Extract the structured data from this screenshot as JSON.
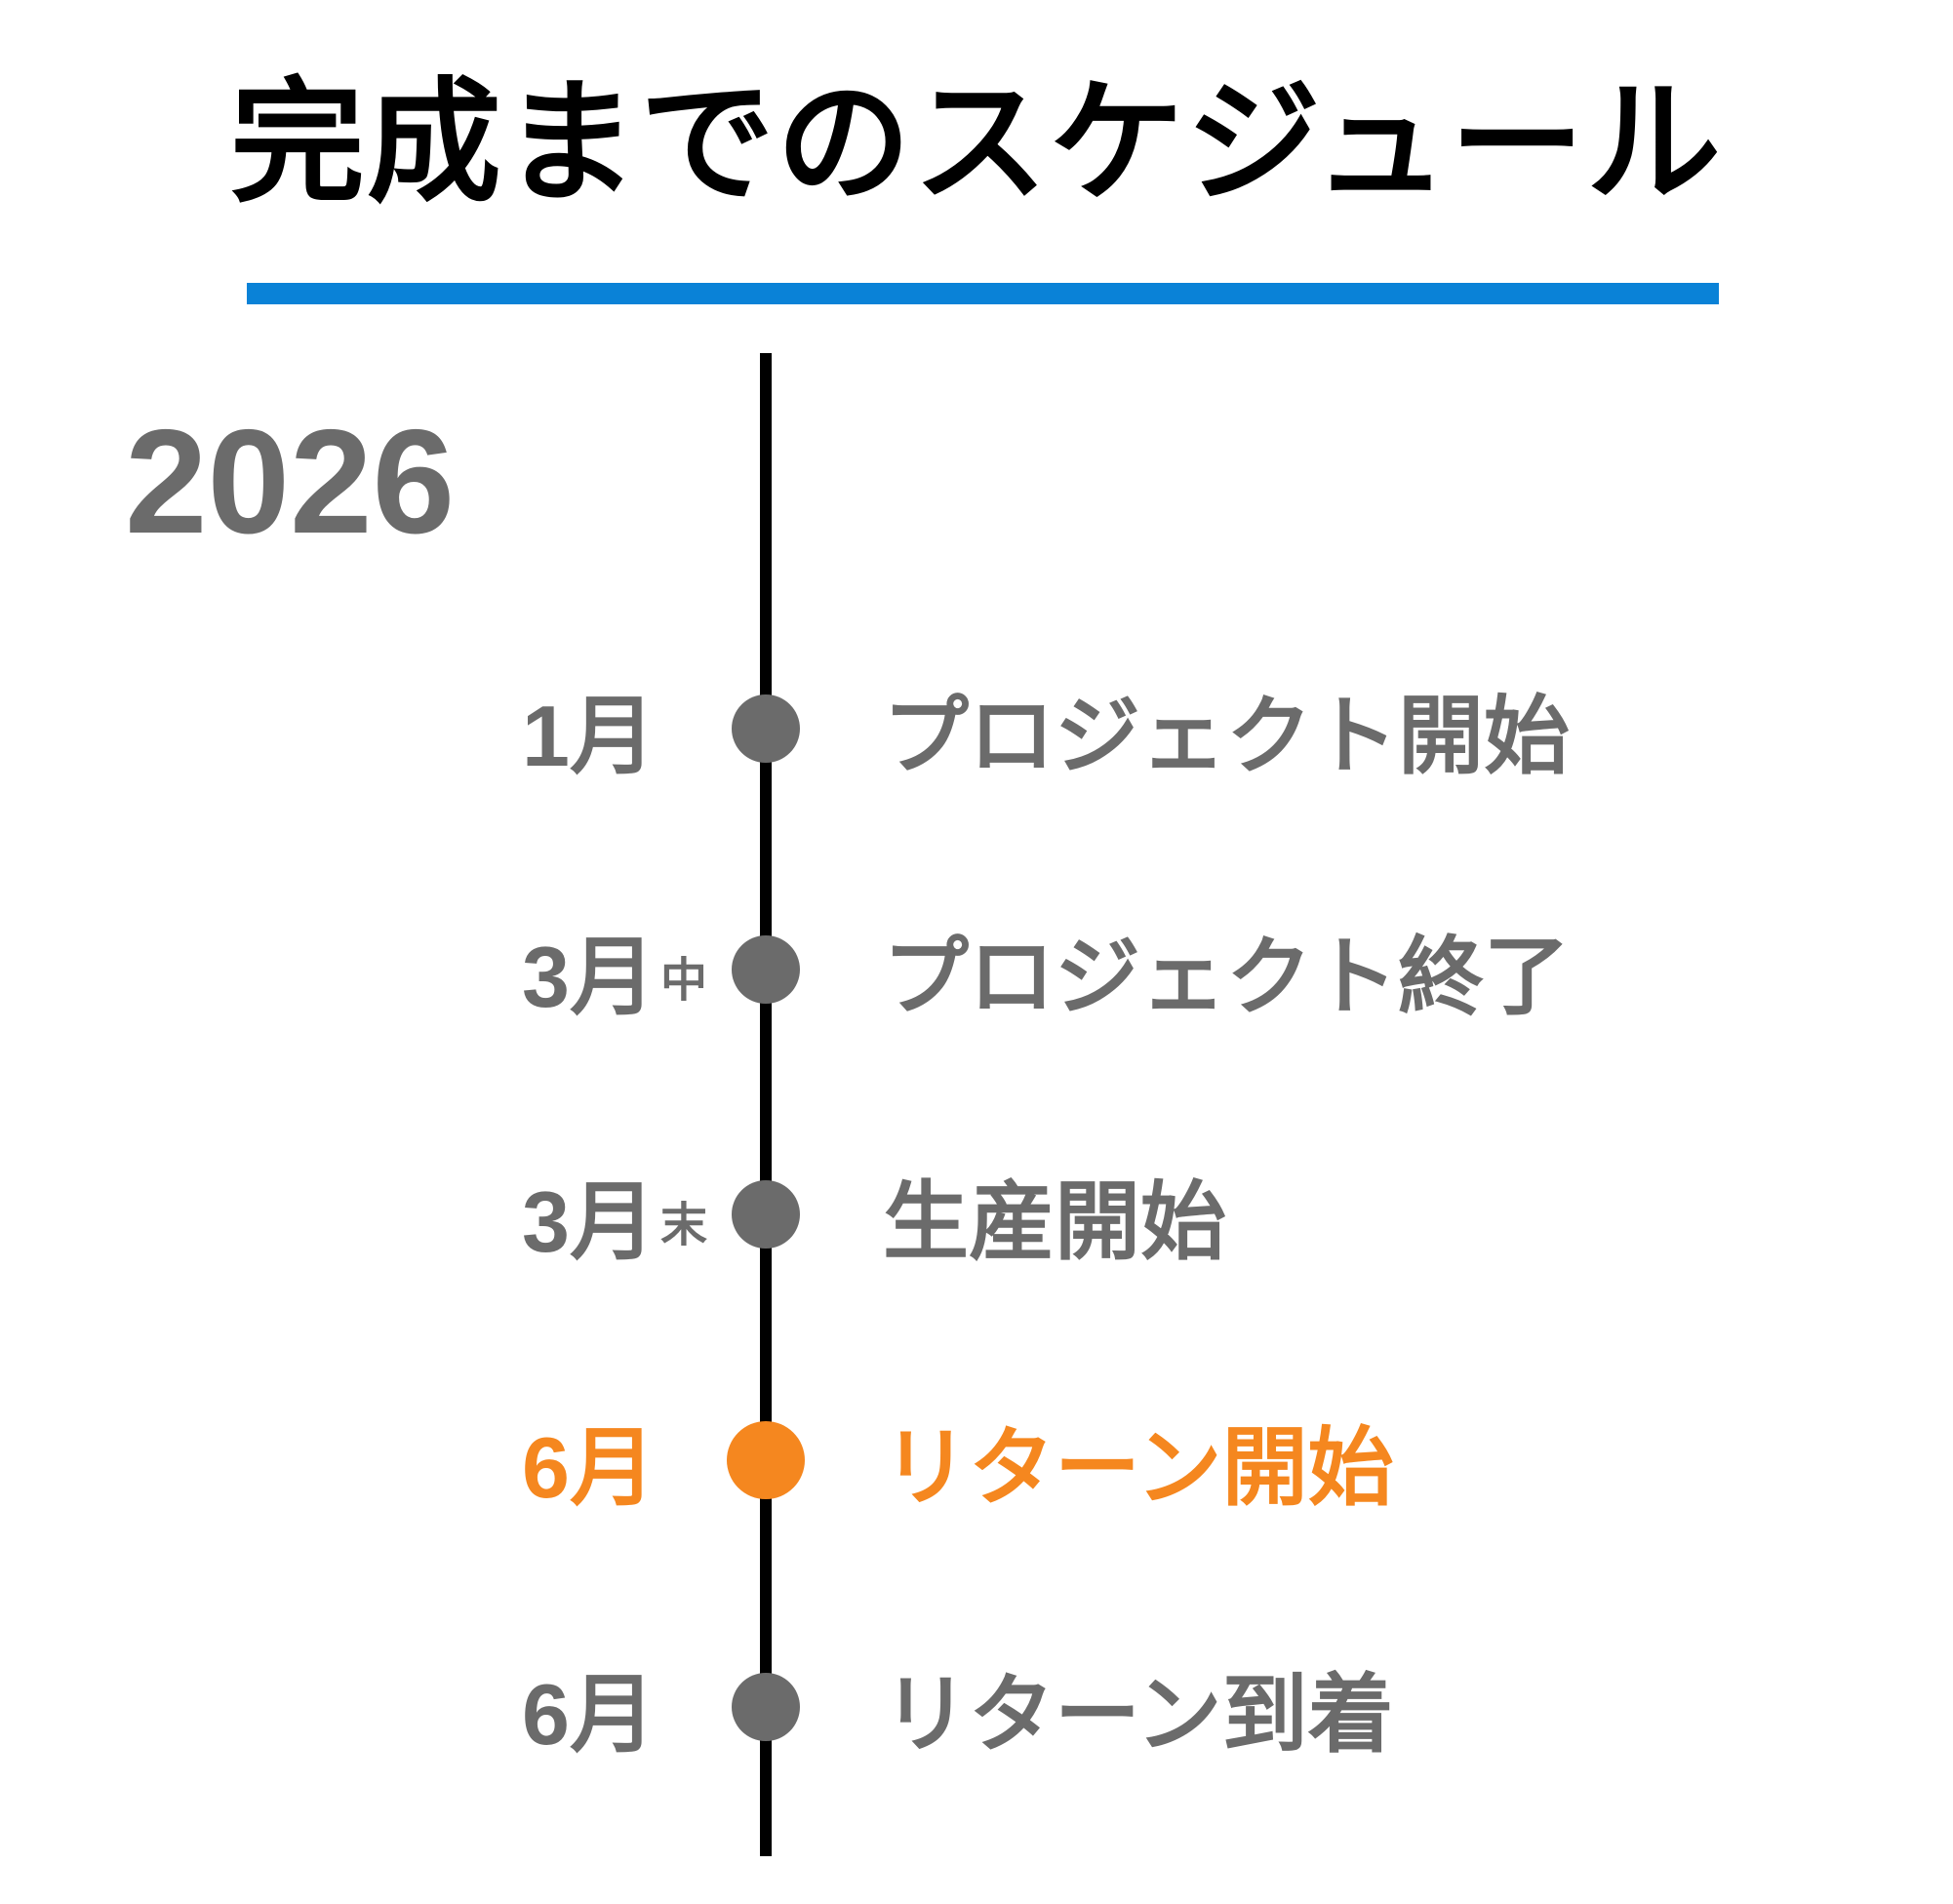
{
  "title": "完成までのスケジュール",
  "year": "2026",
  "colors": {
    "title_text": "#000000",
    "underline_blue": "#0a82d7",
    "timeline_line_black": "#000000",
    "default_gray": "#6b6b6b",
    "highlight_orange": "#f5871f",
    "background": "#ffffff"
  },
  "timeline": {
    "items": [
      {
        "month": "1月",
        "suffix": "",
        "event": "プロジェクト開始",
        "highlight": false
      },
      {
        "month": "3月",
        "suffix": "中",
        "event": "プロジェクト終了",
        "highlight": false
      },
      {
        "month": "3月",
        "suffix": "末",
        "event": "生産開始",
        "highlight": false
      },
      {
        "month": "6月",
        "suffix": "",
        "event": "リターン開始",
        "highlight": true
      },
      {
        "month": "6月",
        "suffix": "",
        "event": "リターン到着",
        "highlight": false
      }
    ]
  }
}
